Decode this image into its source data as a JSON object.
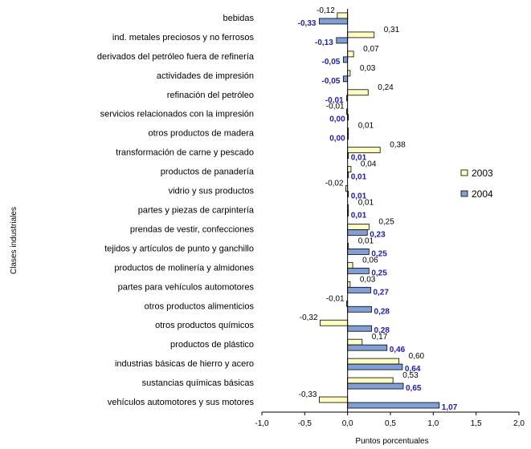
{
  "chart_data": {
    "type": "bar",
    "orientation": "horizontal",
    "title": "",
    "xlabel": "Puntos porcentuales",
    "ylabel": "Clases industriales",
    "xlim": [
      -1.0,
      2.0
    ],
    "xticks": [
      "-1,0",
      "-0,5",
      "0,0",
      "0,5",
      "1,0",
      "1,5",
      "2,0"
    ],
    "grid": false,
    "legend_position": "right",
    "categories": [
      "bebidas",
      "ind. metales preciosos y no ferrosos",
      "derivados del petróleo fuera de refinería",
      "actividades de impresión",
      "refinación del petróleo",
      "servicios relacionados con la impresión",
      "otros productos de madera",
      "transformación de carne y pescado",
      "productos de panadería",
      "vidrio y sus productos",
      "partes y piezas de carpintería",
      "prendas de vestir, confecciones",
      "tejidos y artículos de punto y ganchillo",
      "productos de molinería y almidones",
      "partes para vehículos automotores",
      "otros productos alimenticios",
      "otros productos químicos",
      "productos de plástico",
      "industrias básicas de hierro y acero",
      "sustancias químicas básicas",
      "vehículos automotores y sus motores"
    ],
    "series": [
      {
        "name": "2003",
        "color": "#ffffc0",
        "values": [
          -0.12,
          0.31,
          0.07,
          0.03,
          0.24,
          -0.01,
          0.01,
          0.38,
          0.04,
          -0.02,
          0.01,
          0.25,
          0.01,
          0.06,
          0.03,
          -0.01,
          -0.32,
          0.17,
          0.6,
          0.53,
          -0.33
        ],
        "labels": [
          "-0,12",
          "0,31",
          "0,07",
          "0,03",
          "0,24",
          "-0,01",
          "0,01",
          "0,38",
          "0,04",
          "-0,02",
          "0,01",
          "0,25",
          "0,01",
          "0,06",
          "0,03",
          "-0,01",
          "-0,32",
          "0,17",
          "0,60",
          "0,53",
          "-0,33"
        ]
      },
      {
        "name": "2004",
        "color": "#7f9fd8",
        "values": [
          -0.33,
          -0.13,
          -0.05,
          -0.05,
          -0.01,
          0.0,
          0.0,
          0.01,
          0.01,
          0.01,
          0.01,
          0.23,
          0.25,
          0.25,
          0.27,
          0.28,
          0.28,
          0.46,
          0.64,
          0.65,
          1.07
        ],
        "labels": [
          "-0,33",
          "-0,13",
          "-0,05",
          "-0,05",
          "-0,01",
          "0,00",
          "0,00",
          "0,01",
          "0,01",
          "0,01",
          "0,01",
          "0,23",
          "0,25",
          "0,25",
          "0,27",
          "0,28",
          "0,28",
          "0,46",
          "0,64",
          "0,65",
          "1,07"
        ]
      }
    ]
  }
}
